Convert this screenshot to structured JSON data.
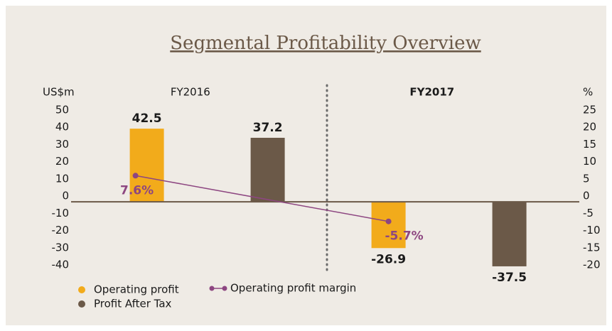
{
  "chart_data": {
    "type": "bar",
    "title": "Segmental Profitability Overview",
    "y_label": "US$m",
    "y2_label": "%",
    "categories": [
      "FY2016",
      "FY2017"
    ],
    "series": [
      {
        "name": "Operating profit",
        "color": "#f2ab1b",
        "values": [
          42.5,
          -26.9
        ]
      },
      {
        "name": "Profit After Tax",
        "color": "#6b5948",
        "values": [
          37.2,
          -37.5
        ]
      },
      {
        "name": "Operating profit margin",
        "type": "line",
        "axis": "y2",
        "color": "#8d4681",
        "values": [
          7.6,
          -5.7
        ],
        "value_labels": [
          "7.6%",
          "-5.7%"
        ]
      }
    ],
    "ylim": [
      -40,
      50
    ],
    "yticks": [
      -40,
      -30,
      -20,
      -10,
      0,
      10,
      20,
      30,
      40,
      50
    ],
    "y2lim": [
      -20,
      25
    ],
    "y2ticks": [
      -20,
      -15,
      -10,
      -5,
      0,
      5,
      10,
      15,
      20,
      25
    ]
  }
}
